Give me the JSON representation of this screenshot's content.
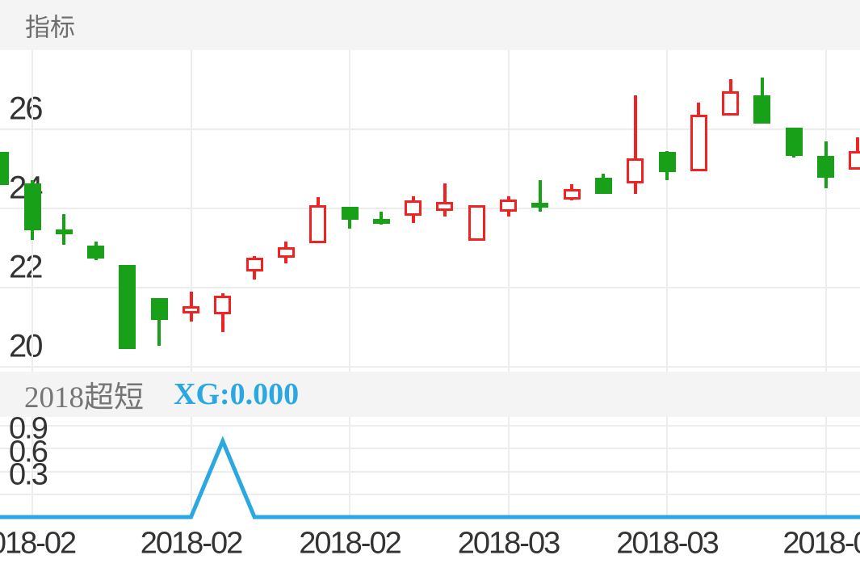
{
  "header": {
    "tab_label": "指标"
  },
  "sub_indicator": {
    "name": "2018超短",
    "signal_label": "XG:0.000"
  },
  "colors": {
    "up": "#F02222",
    "down": "#18A018",
    "line": "#2BA7E2",
    "xg_text": "#2BA7E2",
    "bar_bg": "#f4f4f5",
    "tab_text": "#6e6e6e",
    "sub_name_text": "#757575",
    "axis_text": "#333333",
    "grid": "#ededed"
  },
  "chart_data": [
    {
      "type": "candlestick",
      "title": "指标",
      "convention": "red-hollow = up (close > open), green-solid = down (close < open)",
      "y_axis": {
        "ticks": [
          26,
          24,
          22,
          20
        ],
        "tick_labels": [
          "26",
          "24",
          "22",
          "20"
        ],
        "range": [
          19.8,
          28.0
        ],
        "grid": true
      },
      "x_axis": {
        "tick_indices": [
          1,
          6,
          11,
          16,
          21,
          26
        ],
        "tick_labels": [
          "018-02",
          "2018-02",
          "2018-02",
          "2018-03",
          "2018-03",
          "2018-0"
        ],
        "note": "first and last labels are clipped at screen edges"
      },
      "candles": [
        {
          "o": 25.42,
          "h": 25.42,
          "l": 24.58,
          "c": 24.58
        },
        {
          "o": 24.62,
          "h": 24.7,
          "l": 23.19,
          "c": 23.43
        },
        {
          "o": 23.47,
          "h": 23.84,
          "l": 23.06,
          "c": 23.33
        },
        {
          "o": 23.06,
          "h": 23.16,
          "l": 22.68,
          "c": 22.72
        },
        {
          "o": 22.57,
          "h": 22.57,
          "l": 20.43,
          "c": 20.43
        },
        {
          "o": 21.73,
          "h": 21.73,
          "l": 20.51,
          "c": 21.18
        },
        {
          "o": 21.48,
          "h": 21.89,
          "l": 21.14,
          "c": 21.53
        },
        {
          "o": 21.32,
          "h": 21.85,
          "l": 20.86,
          "c": 21.79
        },
        {
          "o": 22.4,
          "h": 22.78,
          "l": 22.19,
          "c": 22.74
        },
        {
          "o": 22.74,
          "h": 23.16,
          "l": 22.61,
          "c": 23.01
        },
        {
          "o": 23.12,
          "h": 24.27,
          "l": 23.12,
          "c": 24.08
        },
        {
          "o": 24.04,
          "h": 24.04,
          "l": 23.47,
          "c": 23.7
        },
        {
          "o": 23.72,
          "h": 23.9,
          "l": 23.59,
          "c": 23.68
        },
        {
          "o": 23.8,
          "h": 24.29,
          "l": 23.63,
          "c": 24.19
        },
        {
          "o": 23.92,
          "h": 24.62,
          "l": 23.78,
          "c": 24.15
        },
        {
          "o": 23.18,
          "h": 24.08,
          "l": 23.18,
          "c": 24.08
        },
        {
          "o": 23.9,
          "h": 24.29,
          "l": 23.79,
          "c": 24.21
        },
        {
          "o": 24.13,
          "h": 24.7,
          "l": 23.9,
          "c": 24.09
        },
        {
          "o": 24.21,
          "h": 24.6,
          "l": 24.19,
          "c": 24.49
        },
        {
          "o": 24.76,
          "h": 24.86,
          "l": 24.35,
          "c": 24.35
        },
        {
          "o": 24.62,
          "h": 26.85,
          "l": 24.35,
          "c": 25.25
        },
        {
          "o": 25.42,
          "h": 25.44,
          "l": 24.71,
          "c": 24.9
        },
        {
          "o": 24.93,
          "h": 26.66,
          "l": 24.93,
          "c": 26.36
        },
        {
          "o": 26.34,
          "h": 27.26,
          "l": 26.34,
          "c": 26.95
        },
        {
          "o": 26.85,
          "h": 27.3,
          "l": 26.13,
          "c": 26.13
        },
        {
          "o": 26.03,
          "h": 26.03,
          "l": 25.27,
          "c": 25.31
        },
        {
          "o": 25.31,
          "h": 25.68,
          "l": 24.49,
          "c": 24.76
        },
        {
          "o": 24.97,
          "h": 25.79,
          "l": 24.97,
          "c": 25.44
        }
      ]
    },
    {
      "type": "line",
      "name": "2018超短",
      "series_label": "XG",
      "current_value": "0.000",
      "y_axis": {
        "ticks": [
          0.9,
          0.6,
          0.3
        ],
        "tick_labels": [
          "0.9",
          "0.6",
          "0.3"
        ],
        "grid_ticks": [
          1.2,
          0.9,
          0.6,
          0.3
        ],
        "grid": true
      },
      "values": [
        0,
        0,
        0,
        0,
        0,
        0,
        0,
        1,
        0,
        0,
        0,
        0,
        0,
        0,
        0,
        0,
        0,
        0,
        0,
        0,
        0,
        0,
        0,
        0,
        0,
        0,
        0,
        0
      ],
      "spike_index": 7,
      "spike_value": 1.0
    }
  ]
}
